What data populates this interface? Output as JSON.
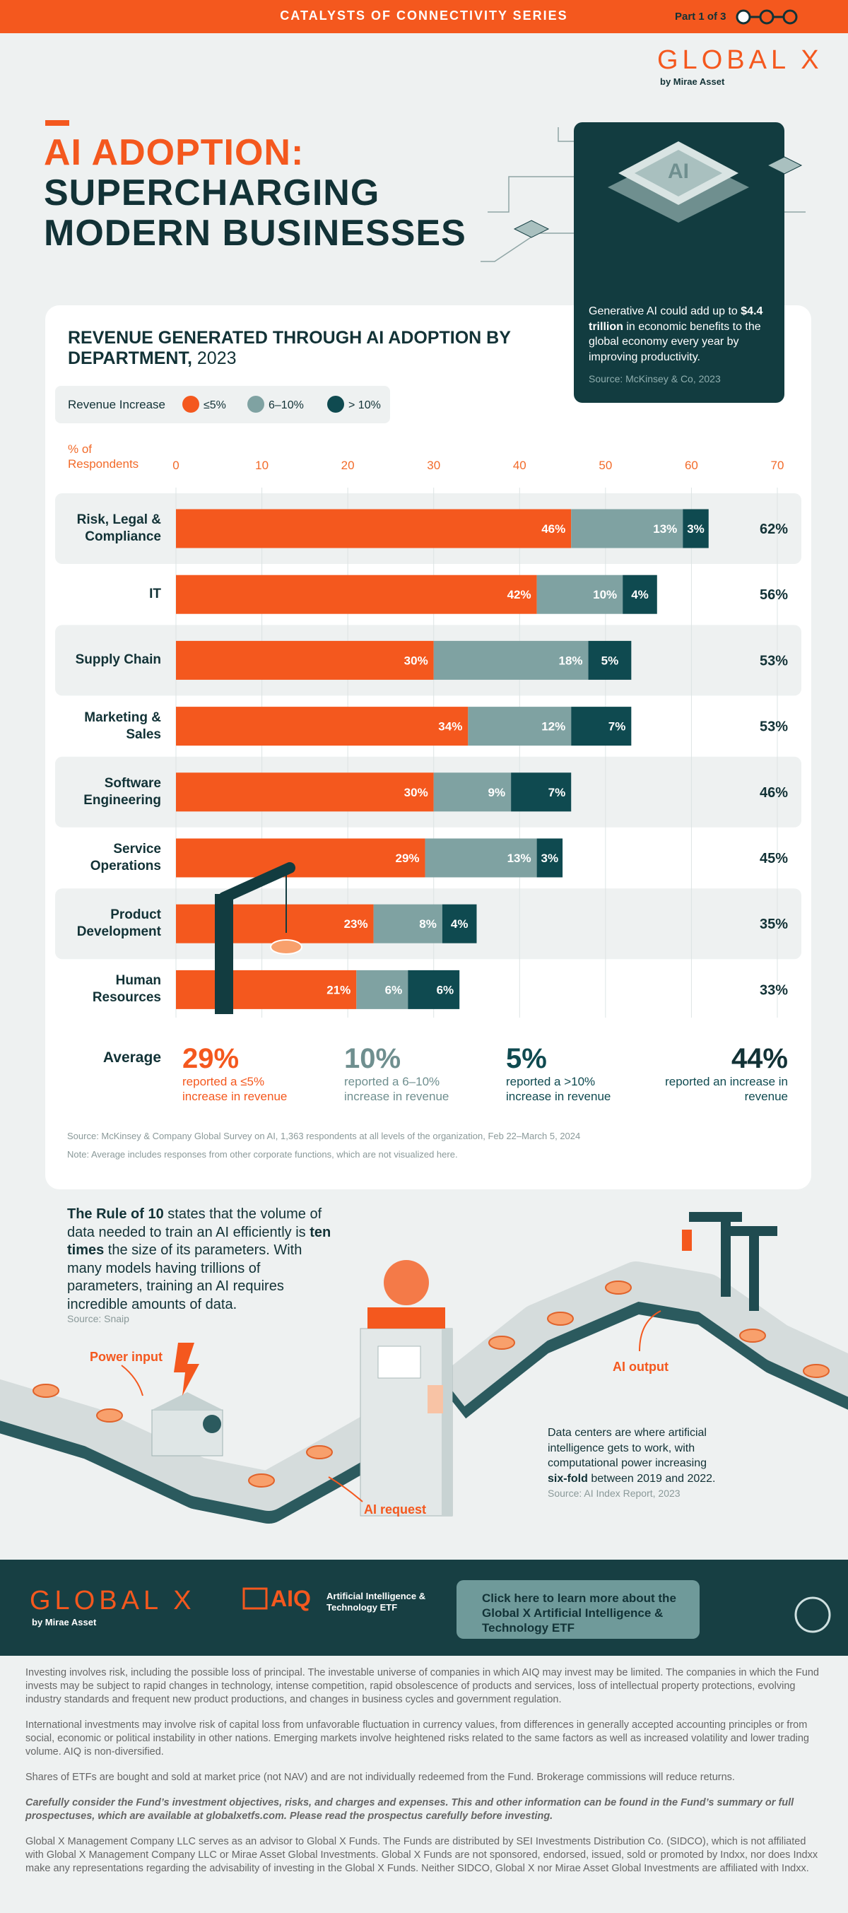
{
  "header": {
    "series": "CATALYSTS OF CONNECTIVITY SERIES",
    "part": "Part 1 of 3"
  },
  "logo": {
    "name": "GLOBAL X",
    "sub": "by Mirae Asset"
  },
  "title": {
    "line1": "AI ADOPTION:",
    "line2": "SUPERCHARGING",
    "line3": "MODERN BUSINESSES"
  },
  "callout": {
    "parts": [
      "Generative AI could add up to ",
      "$4.4 trillion",
      " in economic benefits to the global economy every year by improving productivity."
    ],
    "source": "Source: McKinsey & Co, 2023"
  },
  "chart_data": {
    "type": "bar",
    "orientation": "horizontal",
    "stacked": true,
    "title": "REVENUE GENERATED THROUGH AI ADOPTION BY DEPARTMENT,",
    "title_year": "2023",
    "legend_title": "Revenue Increase",
    "x_label": "% of Respondents",
    "categories": [
      "Risk, Legal & Compliance",
      "IT",
      "Supply Chain",
      "Marketing & Sales",
      "Software Engineering",
      "Service Operations",
      "Product Development",
      "Human Resources"
    ],
    "series": [
      {
        "name": "≤5%",
        "color": "#f4581e",
        "values": [
          46,
          42,
          30,
          34,
          30,
          29,
          23,
          21
        ],
        "value_labels": [
          "46%",
          "42%",
          "30%",
          "34%",
          "30%",
          "29%",
          "23%",
          "21%"
        ]
      },
      {
        "name": "6–10%",
        "color": "#7fa2a2",
        "values": [
          13,
          10,
          18,
          12,
          9,
          13,
          8,
          6
        ],
        "value_labels": [
          "13%",
          "10%",
          "18%",
          "12%",
          "9%",
          "13%",
          "8%",
          "6%"
        ]
      },
      {
        "name": "> 10%",
        "color": "#0f4a50",
        "values": [
          3,
          4,
          5,
          7,
          7,
          3,
          4,
          6
        ],
        "value_labels": [
          "3%",
          "4%",
          "5%",
          "7%",
          "7%",
          "3%",
          "4%",
          "6%"
        ]
      }
    ],
    "totals": [
      62,
      56,
      53,
      53,
      46,
      45,
      35,
      33
    ],
    "total_labels": [
      "62%",
      "56%",
      "53%",
      "53%",
      "46%",
      "45%",
      "35%",
      "33%"
    ],
    "xlim": [
      0,
      70
    ],
    "xticks": [
      0,
      10,
      20,
      30,
      40,
      50,
      60,
      70
    ],
    "grid": true,
    "source": "Source: McKinsey & Company Global Survey on AI, 1,363 respondents at all levels of the organization, Feb 22–March 5, 2024",
    "note": "Note: Average includes responses from other corporate functions, which are not visualized here."
  },
  "averages": {
    "label": "Average",
    "items": [
      {
        "value": "29%",
        "text": "reported a ≤5% increase in revenue"
      },
      {
        "value": "10%",
        "text": "reported a 6–10% increase in revenue"
      },
      {
        "value": "5%",
        "text": "reported a >10% increase in revenue"
      },
      {
        "value": "44%",
        "text": "reported an increase in revenue"
      }
    ]
  },
  "rule_of_10": {
    "parts": [
      "The Rule of 10",
      " states that the volume of data needed to train an AI efficiently is ",
      "ten times",
      " the size of its parameters. With many models having trillions of parameters, training an AI requires incredible amounts of data."
    ],
    "source": "Source: Snaip"
  },
  "diagram": {
    "power_input": "Power input",
    "ai_output": "AI output",
    "ai_request": "AI request",
    "data_centers": {
      "parts": [
        "Data centers are where artificial intelligence gets to work, with computational power increasing ",
        "six-fold",
        " between 2019 and 2022."
      ],
      "source": "Source: AI Index Report, 2023"
    }
  },
  "footer": {
    "logo": "GLOBAL X",
    "logo_sub": "by Mirae Asset",
    "fund": "AIQ",
    "fund_name": "Artificial Intelligence & Technology ETF",
    "button": "Click here to learn more about the Global X Artificial Intelligence & Technology ETF"
  },
  "disclaimers": [
    "Investing involves risk, including the possible loss of principal. The investable universe of companies in which AIQ may invest may be limited. The companies in which the Fund invests may be subject to rapid changes in technology, intense competition, rapid obsolescence of products and services, loss of intellectual property protections, evolving industry standards and frequent new product productions, and changes in business cycles and government regulation.",
    "International investments may involve risk of capital loss from unfavorable fluctuation in currency values, from differences in generally accepted accounting principles or from social, economic or political instability in other nations. Emerging markets involve heightened risks related to the same factors as well as increased volatility and lower trading volume. AIQ is non-diversified.",
    "Shares of ETFs are bought and sold at market price (not NAV) and are not individually redeemed from the Fund. Brokerage commissions will reduce returns.",
    "Carefully consider the Fund’s investment objectives, risks, and charges and expenses. This and other information can be found in the Fund’s summary or full prospectuses, which are available at globalxetfs.com. Please read the prospectus carefully before investing.",
    "Global X Management Company LLC serves as an advisor to Global X Funds. The Funds are distributed by SEI Investments Distribution Co. (SIDCO), which is not affiliated with Global X Management Company LLC or Mirae Asset Global Investments. Global X Funds are not sponsored, endorsed, issued, sold or promoted by Indxx, nor does Indxx make any representations regarding the advisability of investing in the Global X Funds. Neither SIDCO, Global X nor Mirae Asset Global Investments are affiliated with Indxx."
  ]
}
